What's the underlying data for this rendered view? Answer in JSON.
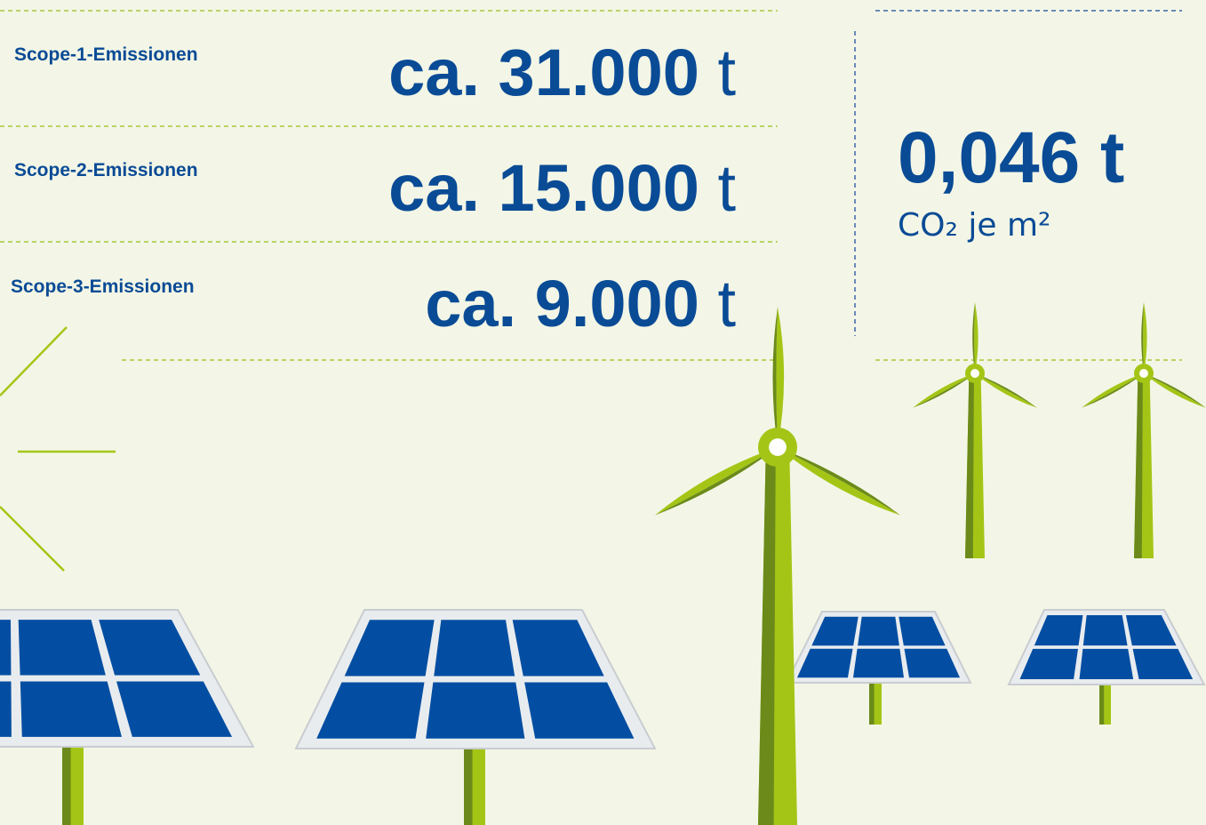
{
  "rows": [
    {
      "label": "Scope-1-Emissionen",
      "value": "ca. 31.000",
      "unit": "t"
    },
    {
      "label": "Scope-2-Emissionen",
      "value": "ca. 15.000",
      "unit": "t"
    },
    {
      "label": "Scope-3-Emissionen",
      "value": "ca. 9.000",
      "unit": "t"
    }
  ],
  "intensity": {
    "value": "0,046 t",
    "caption": "CO₂ je m²"
  }
}
